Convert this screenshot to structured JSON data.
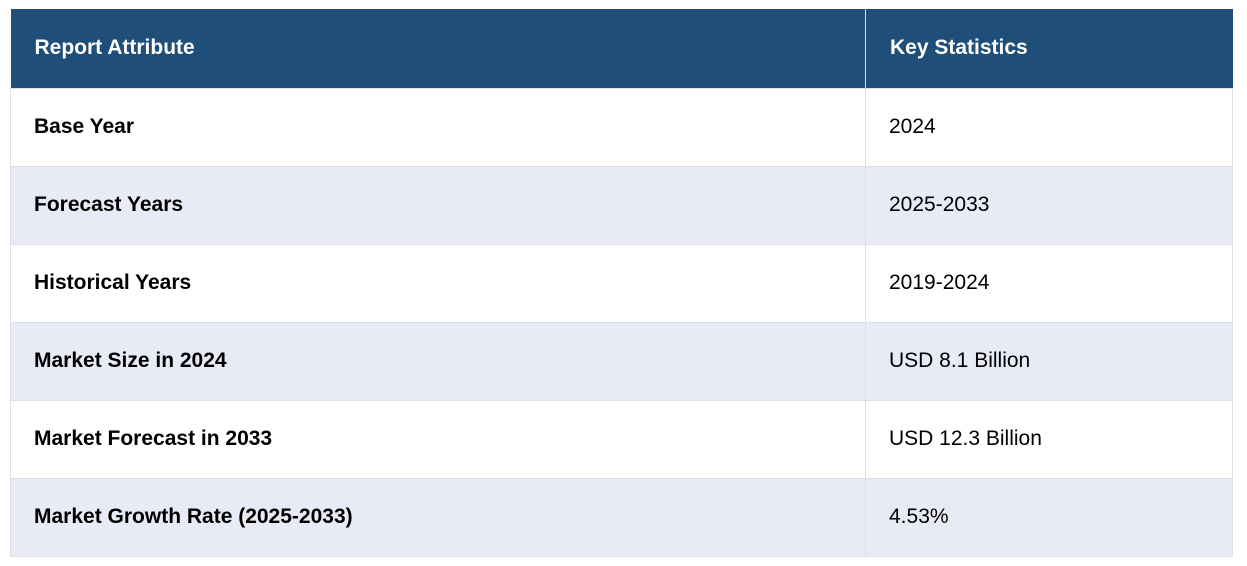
{
  "table": {
    "headers": [
      "Report Attribute",
      "Key Statistics"
    ],
    "rows": [
      {
        "attribute": "Base Year",
        "value": "2024"
      },
      {
        "attribute": "Forecast Years",
        "value": "2025-2033"
      },
      {
        "attribute": "Historical Years",
        "value": "2019-2024"
      },
      {
        "attribute": "Market Size in 2024",
        "value": "USD 8.1 Billion"
      },
      {
        "attribute": "Market Forecast in 2033",
        "value": "USD 12.3 Billion"
      },
      {
        "attribute": "Market Growth Rate (2025-2033)",
        "value": "4.53%"
      }
    ]
  },
  "colors": {
    "header_bg": "#1f4e79",
    "header_text": "#ffffff",
    "row_alt_bg": "#e8eaf6",
    "row_bg": "#ffffff",
    "border": "#dcdfe6"
  }
}
